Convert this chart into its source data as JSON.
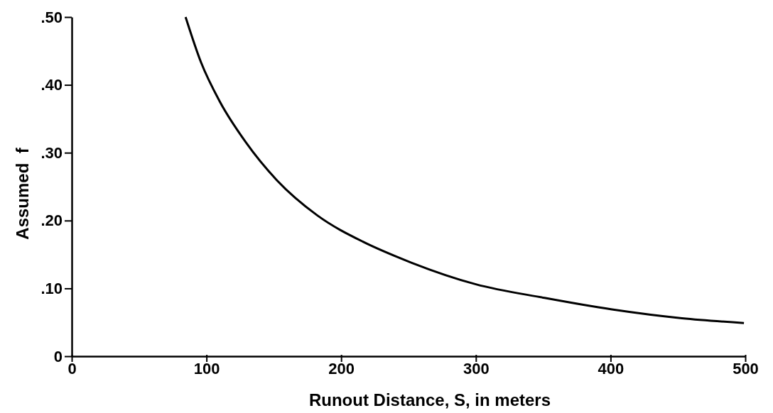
{
  "chart_data": {
    "type": "line",
    "xlabel": "Runout Distance, S, in meters",
    "ylabel": "Assumed  f",
    "xlim": [
      0,
      500
    ],
    "xticks": [
      0,
      100,
      200,
      300,
      400,
      500
    ],
    "ylim": [
      0,
      0.5
    ],
    "yticks": [
      {
        "value": 0,
        "label": "0"
      },
      {
        "value": 0.1,
        "label": ".10"
      },
      {
        "value": 0.2,
        "label": ".20"
      },
      {
        "value": 0.3,
        "label": ".30"
      },
      {
        "value": 0.4,
        "label": ".40"
      },
      {
        "value": 0.5,
        "label": ".50"
      }
    ],
    "grid": false,
    "marker": "none",
    "line_style": "solid",
    "series": [
      {
        "color": "#000000",
        "x": [
          84.5,
          96,
          110,
          129,
          152,
          182,
          217,
          242,
          252,
          300,
          351,
          401,
          453,
          499
        ],
        "values": [
          0.5,
          0.433,
          0.375,
          0.316,
          0.26,
          0.208,
          0.168,
          0.146,
          0.138,
          0.106,
          0.086,
          0.069,
          0.056,
          0.049
        ]
      }
    ]
  }
}
